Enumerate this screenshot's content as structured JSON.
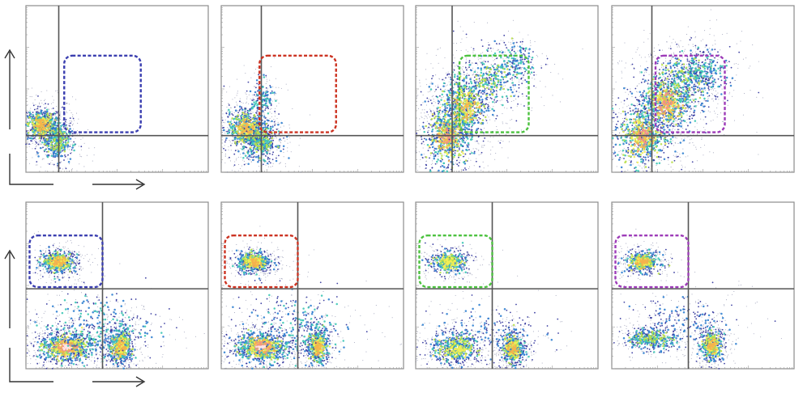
{
  "chart_data": {
    "type": "scatter",
    "description_free": true,
    "layout": {
      "rows": 2,
      "columns": 4
    },
    "gate_colors": [
      "#3b3fb0",
      "#cc3322",
      "#4cc23f",
      "#9d3bb8"
    ],
    "density_palette": [
      "#2b2f9a",
      "#2f7fd0",
      "#3cc7b5",
      "#b8e04a",
      "#f3ee55",
      "#f6b24c",
      "#f28f8a",
      "#fde3e3"
    ],
    "show_axis_arrows": true,
    "axes": {
      "x": {
        "range": [
          0,
          100
        ],
        "scale": "log",
        "tick_labels_visible": false
      },
      "y": {
        "range": [
          0,
          100
        ],
        "scale": "log",
        "tick_labels_visible": false
      }
    },
    "grid": false,
    "panels": [
      {
        "row": 0,
        "col": 0,
        "gate_color_index": 0,
        "quadrant": {
          "x": 18,
          "y": 22
        },
        "gate": {
          "x": [
            21,
            63
          ],
          "y": [
            24,
            70
          ]
        },
        "clusters": [
          {
            "cx": 9,
            "cy": 28,
            "sx": 6,
            "sy": 6,
            "weight": 1.0,
            "peak": 0.75
          },
          {
            "cx": 17,
            "cy": 18,
            "sx": 5,
            "sy": 7,
            "weight": 0.6,
            "peak": 0.55
          }
        ]
      },
      {
        "row": 0,
        "col": 1,
        "gate_color_index": 1,
        "quadrant": {
          "x": 22,
          "y": 22
        },
        "gate": {
          "x": [
            21,
            63
          ],
          "y": [
            24,
            70
          ]
        },
        "clusters": [
          {
            "cx": 14,
            "cy": 26,
            "sx": 7,
            "sy": 8,
            "weight": 1.0,
            "peak": 0.85
          },
          {
            "cx": 22,
            "cy": 18,
            "sx": 6,
            "sy": 7,
            "weight": 0.6,
            "peak": 0.55
          },
          {
            "cx": 23,
            "cy": 44,
            "sx": 4,
            "sy": 7,
            "weight": 0.25,
            "peak": 0.3
          }
        ]
      },
      {
        "row": 0,
        "col": 2,
        "gate_color_index": 2,
        "quadrant": {
          "x": 20,
          "y": 22
        },
        "gate": {
          "x": [
            24,
            62
          ],
          "y": [
            24,
            70
          ]
        },
        "clusters": [
          {
            "cx": 18,
            "cy": 22,
            "sx": 9,
            "sy": 13,
            "weight": 1.0,
            "peak": 0.95
          },
          {
            "cx": 27,
            "cy": 40,
            "sx": 9,
            "sy": 12,
            "weight": 0.9,
            "peak": 0.85
          },
          {
            "cx": 42,
            "cy": 56,
            "sx": 10,
            "sy": 10,
            "weight": 0.5,
            "peak": 0.45
          },
          {
            "cx": 55,
            "cy": 66,
            "sx": 7,
            "sy": 7,
            "weight": 0.25,
            "peak": 0.3
          }
        ]
      },
      {
        "row": 0,
        "col": 3,
        "gate_color_index": 3,
        "quadrant": {
          "x": 22,
          "y": 22
        },
        "gate": {
          "x": [
            24,
            62
          ],
          "y": [
            24,
            70
          ]
        },
        "clusters": [
          {
            "cx": 17,
            "cy": 22,
            "sx": 10,
            "sy": 13,
            "weight": 1.0,
            "peak": 0.95
          },
          {
            "cx": 30,
            "cy": 42,
            "sx": 10,
            "sy": 12,
            "weight": 1.0,
            "peak": 0.95
          },
          {
            "cx": 42,
            "cy": 56,
            "sx": 10,
            "sy": 10,
            "weight": 0.6,
            "peak": 0.55
          },
          {
            "cx": 52,
            "cy": 62,
            "sx": 8,
            "sy": 8,
            "weight": 0.3,
            "peak": 0.35
          }
        ]
      },
      {
        "row": 1,
        "col": 0,
        "gate_color_index": 0,
        "quadrant": {
          "x": 42,
          "y": 48
        },
        "gate": {
          "x": [
            2,
            42
          ],
          "y": [
            49,
            80
          ]
        },
        "clusters": [
          {
            "cx": 18,
            "cy": 64,
            "sx": 6,
            "sy": 4,
            "weight": 0.8,
            "peak": 0.8
          },
          {
            "cx": 22,
            "cy": 13,
            "sx": 10,
            "sy": 6,
            "weight": 1.2,
            "peak": 1.0
          },
          {
            "cx": 52,
            "cy": 13,
            "sx": 4,
            "sy": 7,
            "weight": 0.8,
            "peak": 0.8
          },
          {
            "cx": 40,
            "cy": 25,
            "sx": 18,
            "sy": 12,
            "weight": 0.6,
            "peak": 0.3
          }
        ]
      },
      {
        "row": 1,
        "col": 1,
        "gate_color_index": 1,
        "quadrant": {
          "x": 42,
          "y": 48
        },
        "gate": {
          "x": [
            2,
            42
          ],
          "y": [
            49,
            80
          ]
        },
        "clusters": [
          {
            "cx": 18,
            "cy": 64,
            "sx": 6,
            "sy": 4,
            "weight": 0.8,
            "peak": 0.75
          },
          {
            "cx": 22,
            "cy": 13,
            "sx": 10,
            "sy": 6,
            "weight": 1.1,
            "peak": 1.0
          },
          {
            "cx": 53,
            "cy": 13,
            "sx": 4,
            "sy": 7,
            "weight": 0.7,
            "peak": 0.75
          },
          {
            "cx": 40,
            "cy": 25,
            "sx": 18,
            "sy": 12,
            "weight": 0.5,
            "peak": 0.3
          }
        ]
      },
      {
        "row": 1,
        "col": 2,
        "gate_color_index": 2,
        "quadrant": {
          "x": 42,
          "y": 48
        },
        "gate": {
          "x": [
            2,
            42
          ],
          "y": [
            49,
            80
          ]
        },
        "clusters": [
          {
            "cx": 18,
            "cy": 64,
            "sx": 6,
            "sy": 4,
            "weight": 0.7,
            "peak": 0.7
          },
          {
            "cx": 22,
            "cy": 12,
            "sx": 8,
            "sy": 6,
            "weight": 0.8,
            "peak": 0.7
          },
          {
            "cx": 53,
            "cy": 12,
            "sx": 4,
            "sy": 7,
            "weight": 0.7,
            "peak": 0.75
          },
          {
            "cx": 38,
            "cy": 22,
            "sx": 18,
            "sy": 10,
            "weight": 0.4,
            "peak": 0.25
          }
        ]
      },
      {
        "row": 1,
        "col": 3,
        "gate_color_index": 3,
        "quadrant": {
          "x": 42,
          "y": 48
        },
        "gate": {
          "x": [
            2,
            42
          ],
          "y": [
            49,
            80
          ]
        },
        "clusters": [
          {
            "cx": 17,
            "cy": 64,
            "sx": 6,
            "sy": 4,
            "weight": 0.7,
            "peak": 0.75
          },
          {
            "cx": 22,
            "cy": 18,
            "sx": 9,
            "sy": 4,
            "weight": 0.6,
            "peak": 0.45
          },
          {
            "cx": 55,
            "cy": 14,
            "sx": 4,
            "sy": 6,
            "weight": 0.7,
            "peak": 0.75
          },
          {
            "cx": 38,
            "cy": 28,
            "sx": 16,
            "sy": 8,
            "weight": 0.4,
            "peak": 0.25
          }
        ]
      }
    ]
  }
}
